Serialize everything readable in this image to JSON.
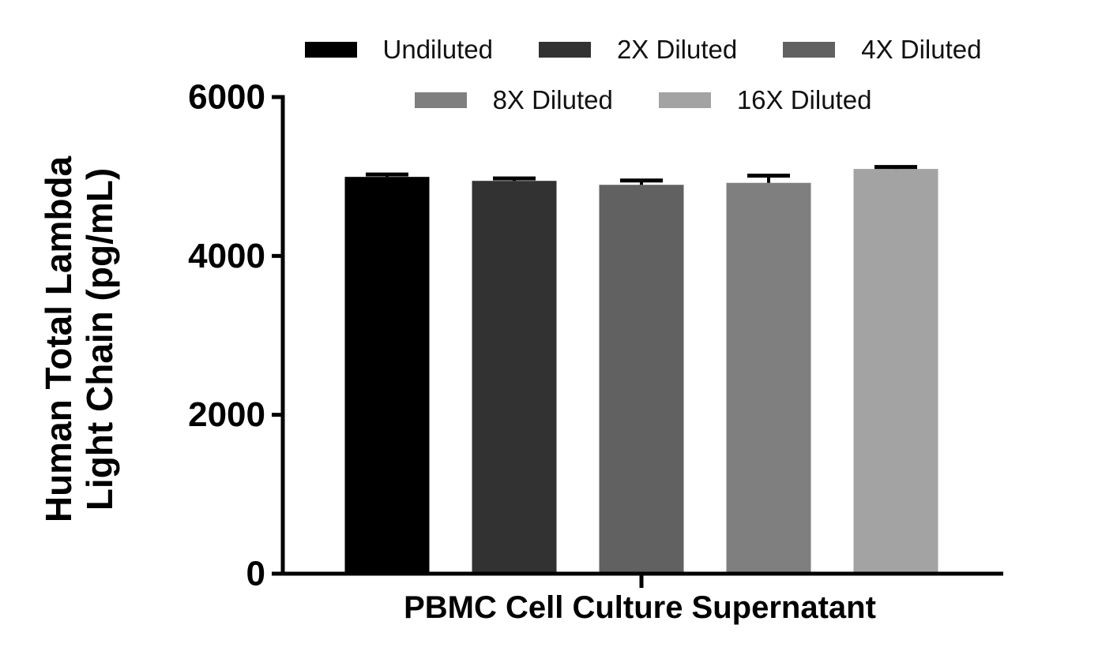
{
  "figure": {
    "ylabel_line1": "Human Total Lambda",
    "ylabel_line2": "Light Chain (pg/mL)",
    "xlabel": "PBMC Cell Culture Supernatant"
  },
  "chart_data": {
    "type": "bar",
    "title": "",
    "xlabel": "PBMC Cell Culture Supernatant",
    "ylabel": "Human Total Lambda Light Chain (pg/mL)",
    "ylim": [
      0,
      6000
    ],
    "yticks": [
      0,
      2000,
      4000,
      6000
    ],
    "grid": false,
    "legend_position": "top",
    "error_bar_color": "#000000",
    "categories": [
      "PBMC Cell Culture Supernatant"
    ],
    "series": [
      {
        "name": "Undiluted",
        "values": [
          4995
        ],
        "error_sd": [
          30
        ],
        "color": "#000000"
      },
      {
        "name": "2X Diluted",
        "values": [
          4945
        ],
        "error_sd": [
          30
        ],
        "color": "#323232"
      },
      {
        "name": "4X Diluted",
        "values": [
          4895
        ],
        "error_sd": [
          55
        ],
        "color": "#616161"
      },
      {
        "name": "8X Diluted",
        "values": [
          4920
        ],
        "error_sd": [
          90
        ],
        "color": "#7f7f7f"
      },
      {
        "name": "16X Diluted",
        "values": [
          5095
        ],
        "error_sd": [
          25
        ],
        "color": "#a3a3a3"
      }
    ]
  }
}
